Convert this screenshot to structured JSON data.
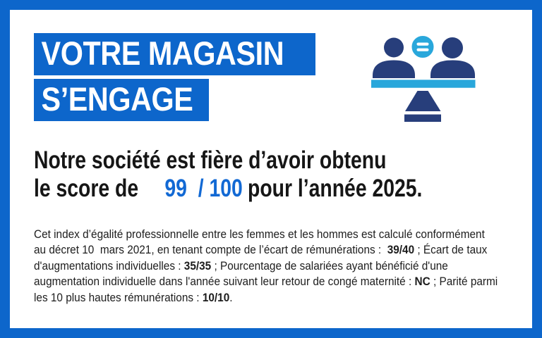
{
  "colors": {
    "brand_blue": "#0d66cb",
    "score_blue": "#1269d4",
    "icon_navy": "#273e7b",
    "icon_light_blue": "#29a7db",
    "headline_text": "#161616",
    "paragraph_text": "#1d1d1d",
    "banner_text": "#ffffff",
    "page_background": "#ffffff"
  },
  "banner": {
    "line1": "VOTRE MAGASIN",
    "line2": "S’ENGAGE"
  },
  "icon": {
    "name": "gender-equality-balance-icon",
    "description": "two people on a balance beam with an equals sign between them"
  },
  "headline": {
    "line1": "Notre société est fière d’avoir obtenu",
    "line2_prefix": "le score de",
    "score": "99  / 100",
    "line2_suffix": "pour l’année 2025."
  },
  "paragraph": {
    "lines": [
      [
        {
          "t": "Cet index d’égalité professionnelle entre les femmes et les hommes est calculé conformément",
          "b": false
        }
      ],
      [
        {
          "t": "au décret 10  mars 2021, en tenant compte de l’écart de rémunérations :  ",
          "b": false
        },
        {
          "t": "39/40",
          "b": true
        },
        {
          "t": " ; Écart de taux",
          "b": false
        }
      ],
      [
        {
          "t": "d'augmentations individuelles : ",
          "b": false
        },
        {
          "t": "35/35",
          "b": true
        },
        {
          "t": " ; Pourcentage de salariées ayant bénéficié d'une",
          "b": false
        }
      ],
      [
        {
          "t": "augmentation individuelle dans l'année suivant leur retour de congé maternité : ",
          "b": false
        },
        {
          "t": "NC",
          "b": true
        },
        {
          "t": " ; Parité parmi",
          "b": false
        }
      ],
      [
        {
          "t": "les 10 plus hautes rémunérations : ",
          "b": false
        },
        {
          "t": "10/10",
          "b": true
        },
        {
          "t": ".",
          "b": false
        }
      ]
    ]
  }
}
